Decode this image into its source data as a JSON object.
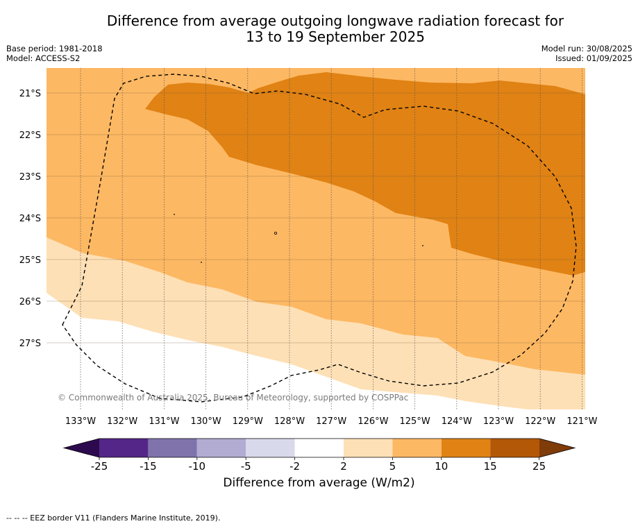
{
  "title_line1": "Difference from average outgoing longwave radiation forecast for",
  "title_line2": "13 to 19 September 2025",
  "base_period": "Base period: 1981-2018",
  "model": "Model: ACCESS-S2",
  "model_run": "Model run: 30/08/2025",
  "issued": "Issued: 01/09/2025",
  "copyright": "© Commonwealth of Australia 2025, Bureau of Meteorology, supported by COSPPac",
  "colorbar_label": "Difference from average (W/m2)",
  "footnote": "--  --  -- EEZ border V11 (Flanders Marine Institute, 2019).",
  "lat_labels": [
    "21°S",
    "22°S",
    "23°S",
    "24°S",
    "25°S",
    "26°S",
    "27°S"
  ],
  "lon_labels": [
    "133°W",
    "132°W",
    "131°W",
    "130°W",
    "129°W",
    "128°W",
    "127°W",
    "126°W",
    "125°W",
    "124°W",
    "123°W",
    "122°W",
    "121°W"
  ],
  "colorbar_ticks": [
    "-25",
    "-15",
    "-10",
    "-5",
    "-2",
    "2",
    "5",
    "10",
    "15",
    "25"
  ],
  "colors": {
    "lt_m25": "#2d0a4e",
    "m25_m15": "#542688",
    "m15_m10": "#8073ac",
    "m10_m5": "#b2abd2",
    "m5_m2": "#d8daeb",
    "m2_2": "#ffffff",
    "p2_5": "#fee0b6",
    "p5_10": "#fdb863",
    "p10_15": "#e08214",
    "p15_25": "#b35806",
    "gt_25": "#7f3b08"
  }
}
